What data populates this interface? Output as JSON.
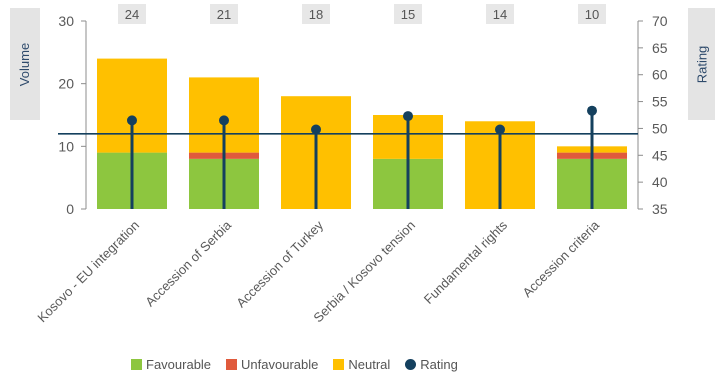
{
  "chart_data": {
    "type": "bar",
    "stacked": true,
    "categories": [
      "Kosovo - EU integration",
      "Accession of Serbia",
      "Accession of Turkey",
      "Serbia / Kosovo tension",
      "Fundamental rights",
      "Accession criteria"
    ],
    "totals": [
      24,
      21,
      18,
      15,
      14,
      10
    ],
    "series": [
      {
        "name": "Favourable",
        "values": [
          9,
          8,
          0,
          8,
          0,
          8
        ],
        "color": "#8dc63f"
      },
      {
        "name": "Unfavourable",
        "values": [
          0,
          1,
          0,
          0,
          0,
          1
        ],
        "color": "#e05a3c"
      },
      {
        "name": "Neutral",
        "values": [
          15,
          12,
          18,
          7,
          14,
          1
        ],
        "color": "#ffc000"
      }
    ],
    "rating": {
      "name": "Rating",
      "values": [
        51.5,
        51.5,
        49.8,
        52.3,
        49.8,
        53.3
      ],
      "color": "#14405e",
      "reference": 49
    },
    "ylabel_left": "Volume",
    "ylabel_right": "Rating",
    "ylim_left": [
      0,
      30
    ],
    "yticks_left": [
      0,
      10,
      20,
      30
    ],
    "ylim_right": [
      35,
      70
    ],
    "yticks_right": [
      35,
      40,
      45,
      50,
      55,
      60,
      65,
      70
    ],
    "legend_position": "bottom",
    "grid": false
  }
}
